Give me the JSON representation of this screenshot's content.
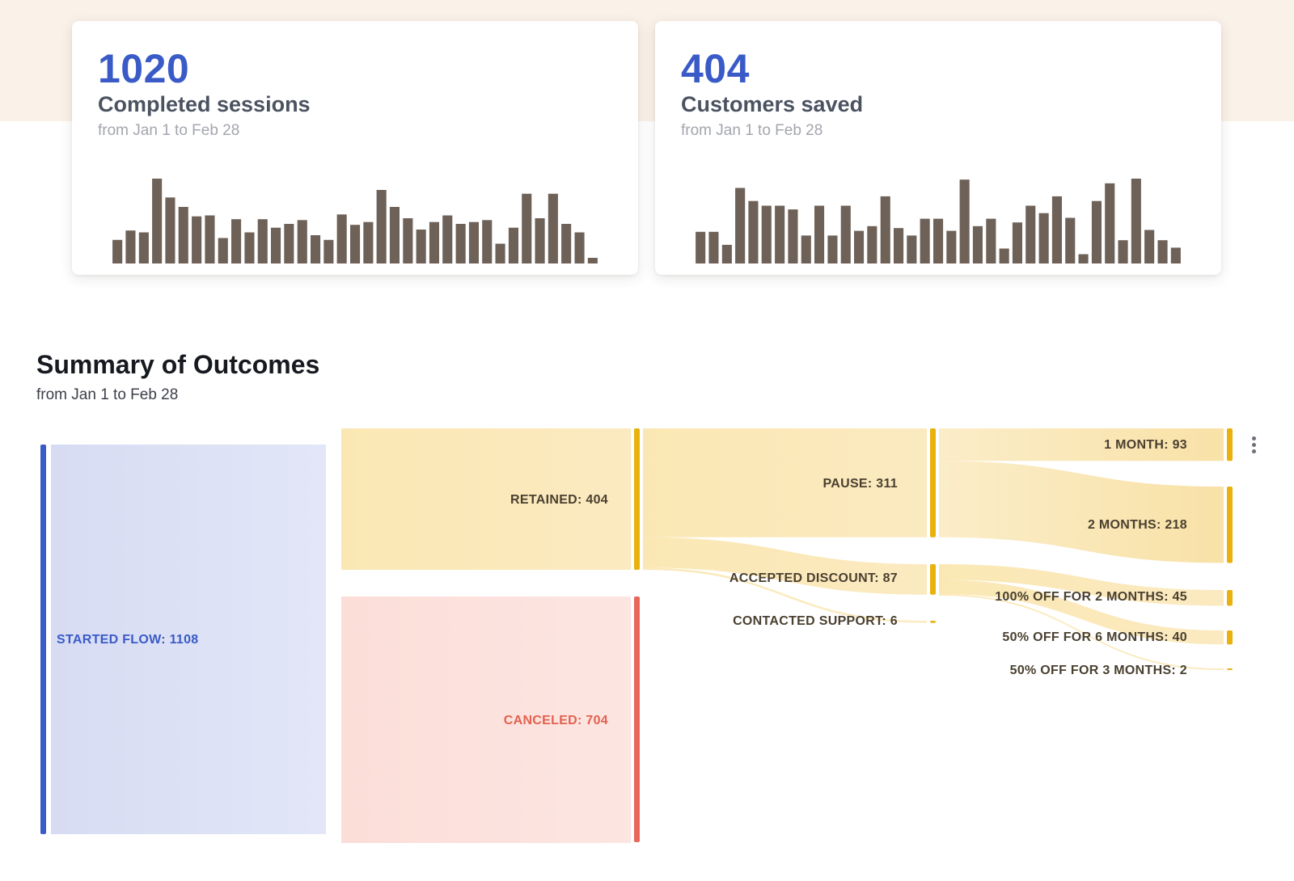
{
  "cards": [
    {
      "value": "1020",
      "label": "Completed sessions",
      "subtitle": "from Jan 1 to Feb 28",
      "chart_data": {
        "type": "bar",
        "values": [
          25,
          35,
          33,
          90,
          70,
          60,
          50,
          51,
          27,
          47,
          33,
          47,
          38,
          42,
          46,
          30,
          25,
          52,
          41,
          44,
          78,
          60,
          48,
          36,
          44,
          51,
          42,
          44,
          46,
          21,
          38,
          74,
          48,
          74,
          42,
          33,
          6
        ]
      }
    },
    {
      "value": "404",
      "label": "Customers saved",
      "subtitle": "from Jan 1 to Feb 28",
      "chart_data": {
        "type": "bar",
        "values": [
          34,
          34,
          20,
          81,
          67,
          62,
          62,
          58,
          30,
          62,
          30,
          62,
          35,
          40,
          72,
          38,
          30,
          48,
          48,
          35,
          90,
          40,
          48,
          16,
          44,
          62,
          54,
          72,
          49,
          10,
          67,
          86,
          25,
          91,
          36,
          25,
          17
        ]
      }
    }
  ],
  "summary": {
    "title": "Summary of Outcomes",
    "subtitle": "from Jan 1 to Feb 28"
  },
  "chart_data": {
    "type": "sankey",
    "nodes": [
      {
        "id": "started",
        "label": "STARTED FLOW: 1108",
        "value": 1108,
        "color": "#3a5bc7"
      },
      {
        "id": "retained",
        "label": "RETAINED: 404",
        "value": 404,
        "color": "#e8b10c"
      },
      {
        "id": "canceled",
        "label": "CANCELED: 704",
        "value": 704,
        "color": "#e8675a"
      },
      {
        "id": "pause",
        "label": "PAUSE: 311",
        "value": 311,
        "color": "#e8b10c"
      },
      {
        "id": "discount",
        "label": "ACCEPTED DISCOUNT: 87",
        "value": 87,
        "color": "#e8b10c"
      },
      {
        "id": "support",
        "label": "CONTACTED SUPPORT: 6",
        "value": 6,
        "color": "#e8b10c"
      },
      {
        "id": "m1",
        "label": "1 MONTH: 93",
        "value": 93,
        "color": "#e8b10c"
      },
      {
        "id": "m2",
        "label": "2 MONTHS: 218",
        "value": 218,
        "color": "#e8b10c"
      },
      {
        "id": "off100",
        "label": "100% OFF FOR 2 MONTHS: 45",
        "value": 45,
        "color": "#e8b10c"
      },
      {
        "id": "off50_6",
        "label": "50% OFF FOR 6 MONTHS: 40",
        "value": 40,
        "color": "#e8b10c"
      },
      {
        "id": "off50_3",
        "label": "50% OFF FOR 3 MONTHS: 2",
        "value": 2,
        "color": "#e8b10c"
      }
    ],
    "links": [
      {
        "source": "started",
        "target": "retained",
        "value": 404
      },
      {
        "source": "started",
        "target": "canceled",
        "value": 704
      },
      {
        "source": "retained",
        "target": "pause",
        "value": 311
      },
      {
        "source": "retained",
        "target": "discount",
        "value": 87
      },
      {
        "source": "retained",
        "target": "support",
        "value": 6
      },
      {
        "source": "pause",
        "target": "m1",
        "value": 93
      },
      {
        "source": "pause",
        "target": "m2",
        "value": 218
      },
      {
        "source": "discount",
        "target": "off100",
        "value": 45
      },
      {
        "source": "discount",
        "target": "off50_6",
        "value": 40
      },
      {
        "source": "discount",
        "target": "off50_3",
        "value": 2
      }
    ]
  }
}
